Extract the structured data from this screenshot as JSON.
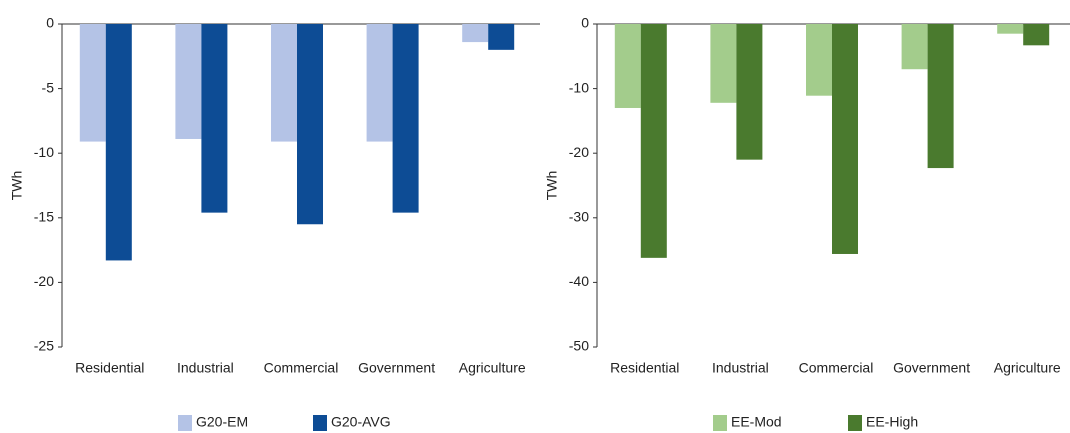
{
  "chart_data": [
    {
      "type": "bar",
      "y_label": "TWh",
      "categories": [
        "Residential",
        "Industrial",
        "Commercial",
        "Government",
        "Agriculture"
      ],
      "series": [
        {
          "name": "G20-EM",
          "color": "#b4c3e6",
          "values": [
            -9.1,
            -8.9,
            -9.1,
            -9.1,
            -1.4
          ]
        },
        {
          "name": "G20-AVG",
          "color": "#0d4c95",
          "values": [
            -18.3,
            -14.6,
            -15.5,
            -14.6,
            -2.0
          ]
        }
      ],
      "ylim": [
        -25,
        0
      ],
      "yticks": [
        0,
        -5,
        -10,
        -15,
        -20,
        -25
      ],
      "legend": "bottom"
    },
    {
      "type": "bar",
      "y_label": "TWh",
      "categories": [
        "Residential",
        "Industrial",
        "Commercial",
        "Government",
        "Agriculture"
      ],
      "series": [
        {
          "name": "EE-Mod",
          "color": "#a3cc8c",
          "values": [
            -13,
            -12.2,
            -11.1,
            -7,
            -1.5
          ]
        },
        {
          "name": "EE-High",
          "color": "#4a7a2e",
          "values": [
            -36.2,
            -21,
            -35.6,
            -22.3,
            -3.3
          ]
        }
      ],
      "ylim": [
        -50,
        0
      ],
      "yticks": [
        0,
        -10,
        -20,
        -30,
        -40,
        -50
      ],
      "legend": "bottom"
    }
  ]
}
